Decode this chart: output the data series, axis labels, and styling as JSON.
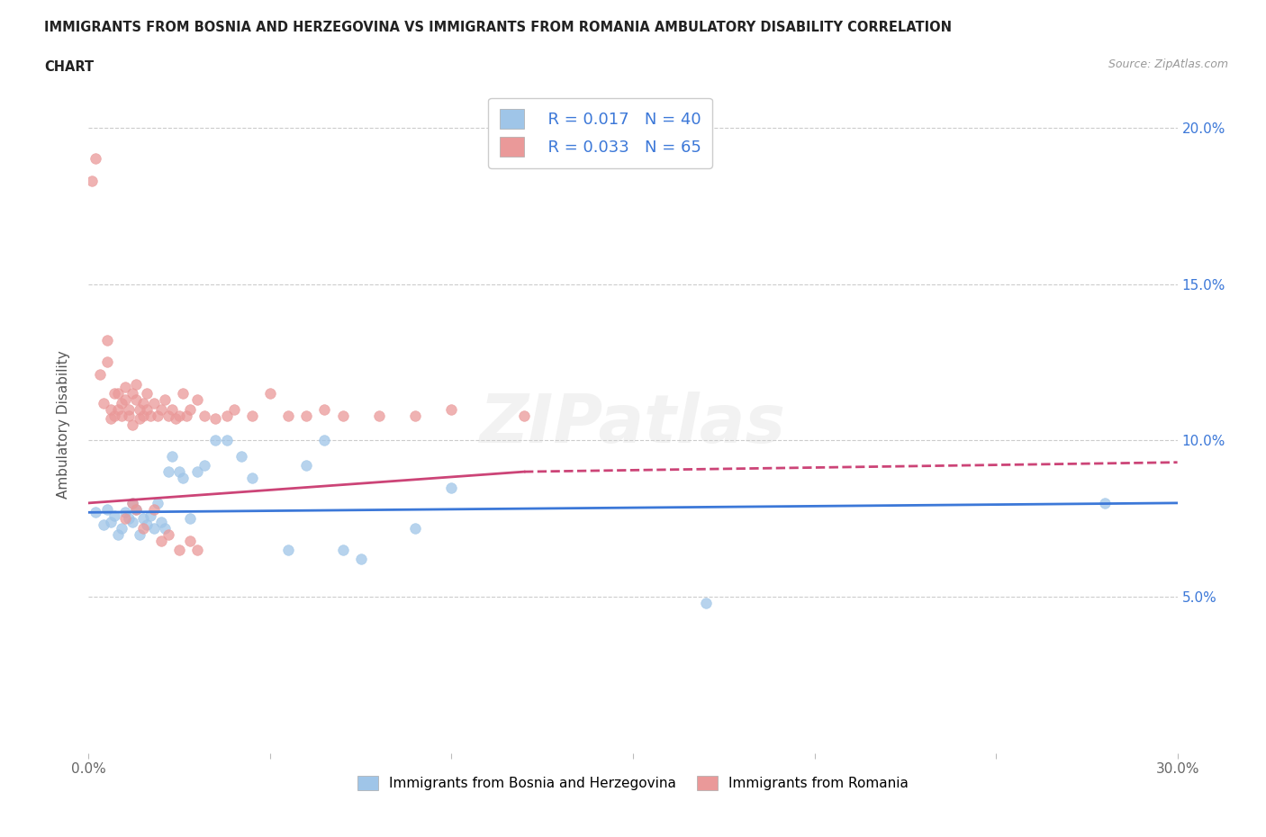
{
  "title_line1": "IMMIGRANTS FROM BOSNIA AND HERZEGOVINA VS IMMIGRANTS FROM ROMANIA AMBULATORY DISABILITY CORRELATION",
  "title_line2": "CHART",
  "source": "Source: ZipAtlas.com",
  "ylabel": "Ambulatory Disability",
  "xlim": [
    0.0,
    0.3
  ],
  "ylim": [
    0.0,
    0.21
  ],
  "watermark": "ZIPatlas",
  "blue_color": "#9fc5e8",
  "pink_color": "#ea9999",
  "blue_line_color": "#3c78d8",
  "pink_line_color": "#cc4477",
  "legend_R1": "R = 0.017",
  "legend_N1": "N = 40",
  "legend_R2": "R = 0.033",
  "legend_N2": "N = 65",
  "blue_scatter_x": [
    0.002,
    0.004,
    0.005,
    0.006,
    0.007,
    0.008,
    0.009,
    0.01,
    0.011,
    0.012,
    0.012,
    0.013,
    0.014,
    0.015,
    0.016,
    0.017,
    0.018,
    0.019,
    0.02,
    0.021,
    0.022,
    0.023,
    0.025,
    0.026,
    0.028,
    0.03,
    0.032,
    0.035,
    0.038,
    0.042,
    0.045,
    0.055,
    0.06,
    0.065,
    0.07,
    0.075,
    0.09,
    0.1,
    0.17,
    0.28
  ],
  "blue_scatter_y": [
    0.077,
    0.073,
    0.078,
    0.074,
    0.076,
    0.07,
    0.072,
    0.077,
    0.075,
    0.074,
    0.08,
    0.078,
    0.07,
    0.075,
    0.073,
    0.076,
    0.072,
    0.08,
    0.074,
    0.072,
    0.09,
    0.095,
    0.09,
    0.088,
    0.075,
    0.09,
    0.092,
    0.1,
    0.1,
    0.095,
    0.088,
    0.065,
    0.092,
    0.1,
    0.065,
    0.062,
    0.072,
    0.085,
    0.048,
    0.08
  ],
  "pink_scatter_x": [
    0.001,
    0.002,
    0.003,
    0.004,
    0.005,
    0.005,
    0.006,
    0.006,
    0.007,
    0.007,
    0.008,
    0.008,
    0.009,
    0.009,
    0.01,
    0.01,
    0.011,
    0.011,
    0.012,
    0.012,
    0.013,
    0.013,
    0.014,
    0.014,
    0.015,
    0.015,
    0.016,
    0.016,
    0.017,
    0.018,
    0.019,
    0.02,
    0.021,
    0.022,
    0.023,
    0.024,
    0.025,
    0.026,
    0.027,
    0.028,
    0.03,
    0.032,
    0.035,
    0.038,
    0.04,
    0.045,
    0.05,
    0.055,
    0.06,
    0.065,
    0.07,
    0.08,
    0.09,
    0.1,
    0.12,
    0.01,
    0.012,
    0.013,
    0.015,
    0.018,
    0.02,
    0.022,
    0.025,
    0.028,
    0.03
  ],
  "pink_scatter_y": [
    0.183,
    0.19,
    0.121,
    0.112,
    0.125,
    0.132,
    0.107,
    0.11,
    0.115,
    0.108,
    0.115,
    0.11,
    0.108,
    0.112,
    0.113,
    0.117,
    0.11,
    0.108,
    0.115,
    0.105,
    0.113,
    0.118,
    0.11,
    0.107,
    0.112,
    0.108,
    0.115,
    0.11,
    0.108,
    0.112,
    0.108,
    0.11,
    0.113,
    0.108,
    0.11,
    0.107,
    0.108,
    0.115,
    0.108,
    0.11,
    0.113,
    0.108,
    0.107,
    0.108,
    0.11,
    0.108,
    0.115,
    0.108,
    0.108,
    0.11,
    0.108,
    0.108,
    0.108,
    0.11,
    0.108,
    0.075,
    0.08,
    0.078,
    0.072,
    0.078,
    0.068,
    0.07,
    0.065,
    0.068,
    0.065
  ],
  "grid_color": "#cccccc",
  "bg_color": "#ffffff",
  "ytick_positions": [
    0.0,
    0.05,
    0.1,
    0.15,
    0.2
  ],
  "ytick_labels_right": [
    "",
    "5.0%",
    "10.0%",
    "15.0%",
    "20.0%"
  ],
  "xtick_positions": [
    0.0,
    0.05,
    0.1,
    0.15,
    0.2,
    0.25,
    0.3
  ],
  "xtick_labels": [
    "0.0%",
    "",
    "",
    "",
    "",
    "",
    "30.0%"
  ]
}
